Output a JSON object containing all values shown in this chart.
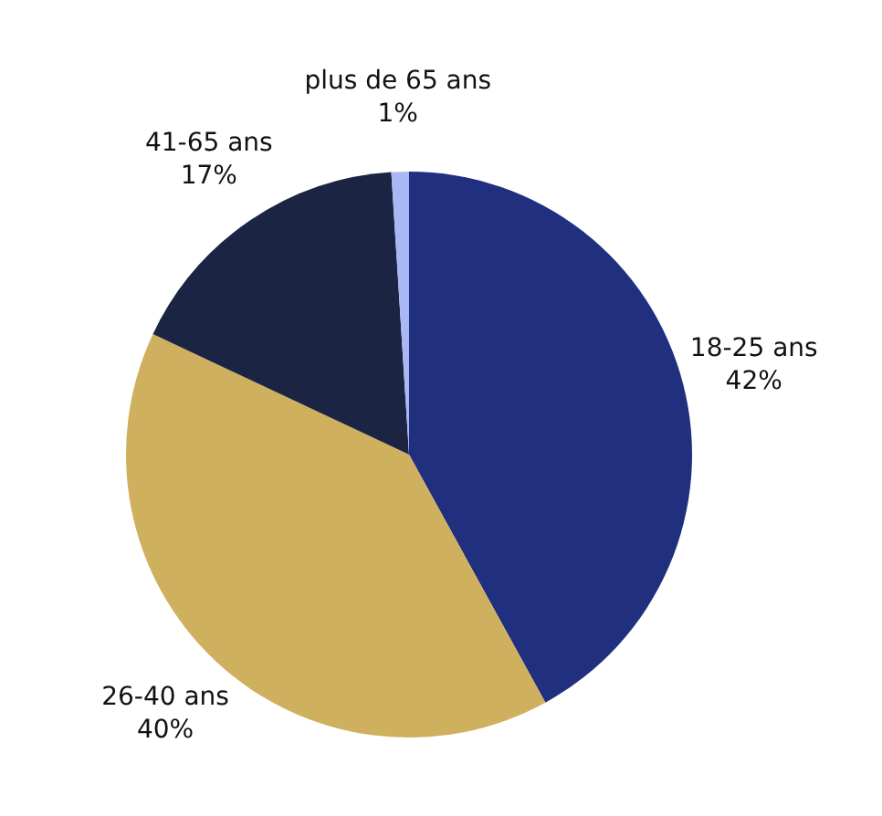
{
  "chart_data": {
    "type": "pie",
    "categories": [
      "18-25 ans",
      "26-40 ans",
      "41-65 ans",
      "plus de 65 ans"
    ],
    "values": [
      42,
      40,
      17,
      1
    ],
    "value_labels": [
      "42%",
      "40%",
      "17%",
      "1%"
    ],
    "colors": [
      "#20307e",
      "#cfb05e",
      "#1c2444",
      "#a9b8f5"
    ],
    "legend": false
  }
}
